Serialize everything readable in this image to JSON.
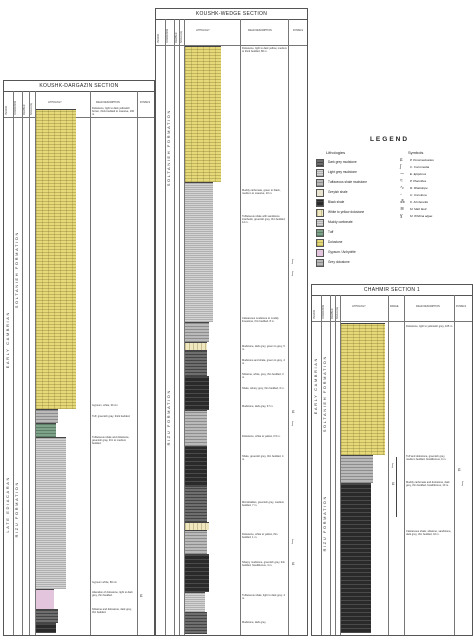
{
  "sections": {
    "koushk_dargazin": {
      "title": "KOUSHK-DARGAZIN SECTION",
      "headers": [
        "PERIOD",
        "FORMATION",
        "MEMBER",
        "SCALE (m)",
        "LITHOLOGY",
        "FIELD DESCRIPTION",
        "FOSSILS"
      ],
      "period_label": "EARLY CAMBRIAN",
      "period2_label": "LATE EDIACARAN",
      "formation1_label": "SOLTANIEH FORMATION",
      "formation2_label": "RIZU FORMATION",
      "descriptions": [
        "Dolostone, light to dark yellowish brown, thick bedded to massive, 160 m.",
        "Gypsum, white, 30 cm",
        "Tuff, greenish gray, thick bedded.",
        "Tuffaceous shale and dolostone, greenish gray, thin to medium bedded.",
        "Gypsum white, 80 cm",
        "Alteration of dolostone, light to dark grey, thin bedded.",
        "Siltstone and dolostone, dark grey, thin bedded."
      ]
    },
    "koushk_wedge": {
      "title": "KOUSHK-WEDGE SECTION",
      "headers": [
        "PERIOD",
        "FORMATION",
        "MEMBER",
        "SCALE (m)",
        "LITHOLOGY",
        "FIELD DESCRIPTION",
        "FOSSILS"
      ],
      "formation1_label": "SOLTANIEH FORMATION",
      "formation2_label": "RIZU FORMATION",
      "descriptions": [
        "Dolostone, light to dark yellow, medium to thick bedded, 80 m.",
        "Muddy carbonate, green to black, medium to massive, 10 m.",
        "Tuffaceous shale with sandstone interbeds, greenish grey, thin bedded, 12 m.",
        "Calcareous mudstone to muddy limestone, thin bedded, 8 m.",
        "Mudstone, dark grey, green to grey, 5 m.",
        "Mudstone and shale, green to grey, 4 m.",
        "Siltstone, white, grey, thin bedded, 3 m.",
        "Shale, silvery grey, thin bedded, 6 m.",
        "Mudstone, dark gray, 47 m.",
        "Dolostone, white to yellow, 0.5 m.",
        "Shale, greenish grey, thin bedded, 4 m.",
        "Microbialites, greenish grey, medium bedded, 7 m.",
        "Dolostone, white to yellow, thin bedded, 1 m.",
        "Sharpy mudstone, greenish grey, thin bedded, fossiliferous, 4 m.",
        "Tuffaceous shale, light to dark grey, 4 m.",
        "Mudstone, dark grey."
      ]
    },
    "chahmir": {
      "title": "CHAHMIR SECTION 1",
      "headers": [
        "PERIOD",
        "FORMATION",
        "MEMBER",
        "SCALE (m)",
        "LITHOLOGY",
        "RANGE",
        "FIELD DESCRIPTION",
        "FOSSILS"
      ],
      "period_label": "EARLY CAMBRIAN",
      "formation1_label": "SOLTANIEH FORMATION",
      "formation2_label": "RIZU FORMATION",
      "descriptions": [
        "Dolostone, light to yellowish grey, 105 m.",
        "Tuff and dolostone, greenish grey, medium bedded, fossiliferous, 9 m.",
        "Muddy carbonate and dolostone, dark grey, thin bedded, fossiliferous, 10 m.",
        "Calcareous shale, siltstone, sandstone, dark grey, thin bedded, 42 m."
      ]
    }
  },
  "legend": {
    "title": "LEGEND",
    "lithologies_title": "Lithologies",
    "symbols_title": "Symbols",
    "lithologies": [
      {
        "key": "dark_grey_mudstone",
        "label": "Dark grey mudstone"
      },
      {
        "key": "light_grey_mudstone",
        "label": "Light grey mudstone"
      },
      {
        "key": "tuffaceous_shale",
        "label": "Tuffaceous shale mudstone"
      },
      {
        "key": "greyish_shale",
        "label": "Greyish shale"
      },
      {
        "key": "black_shale",
        "label": "Black shale"
      },
      {
        "key": "white_yellow_dolostone",
        "label": "White to yellow dolostone"
      },
      {
        "key": "muddy_carbonate",
        "label": "Muddy carbonate"
      },
      {
        "key": "tuff",
        "label": "Tuff"
      },
      {
        "key": "dolostone",
        "label": "Dolostone"
      },
      {
        "key": "gypsum",
        "label": "Gypsum / Anhydrite"
      },
      {
        "key": "grey_dolostone",
        "label": "Grey dolostone"
      }
    ],
    "symbols": [
      {
        "icon": "shell-icon",
        "label": "P. Persimedusites"
      },
      {
        "icon": "tube-icon",
        "label": "C. Conomedia"
      },
      {
        "icon": "burrow-icon",
        "label": "E. Epiplerus"
      },
      {
        "icon": "trace-icon",
        "label": "P. Planolites"
      },
      {
        "icon": "worm-icon",
        "label": "R. Rhabdope"
      },
      {
        "icon": "disc-icon",
        "label": "U. Uncultura"
      },
      {
        "icon": "track-icon",
        "label": "K. Kimberella"
      },
      {
        "icon": "mat-icon",
        "label": "M. Matt fault"
      },
      {
        "icon": "algae-icon",
        "label": "M. Whitina algae"
      }
    ]
  },
  "colors": {
    "dolostone": "#e6d97a",
    "grey_mudstone": "#b9b9b9",
    "dark_grey": "#6e6e6e",
    "black_shale": "#2a2a2a",
    "tuff": "#7fa38a",
    "gypsum": "#e3c6de"
  }
}
